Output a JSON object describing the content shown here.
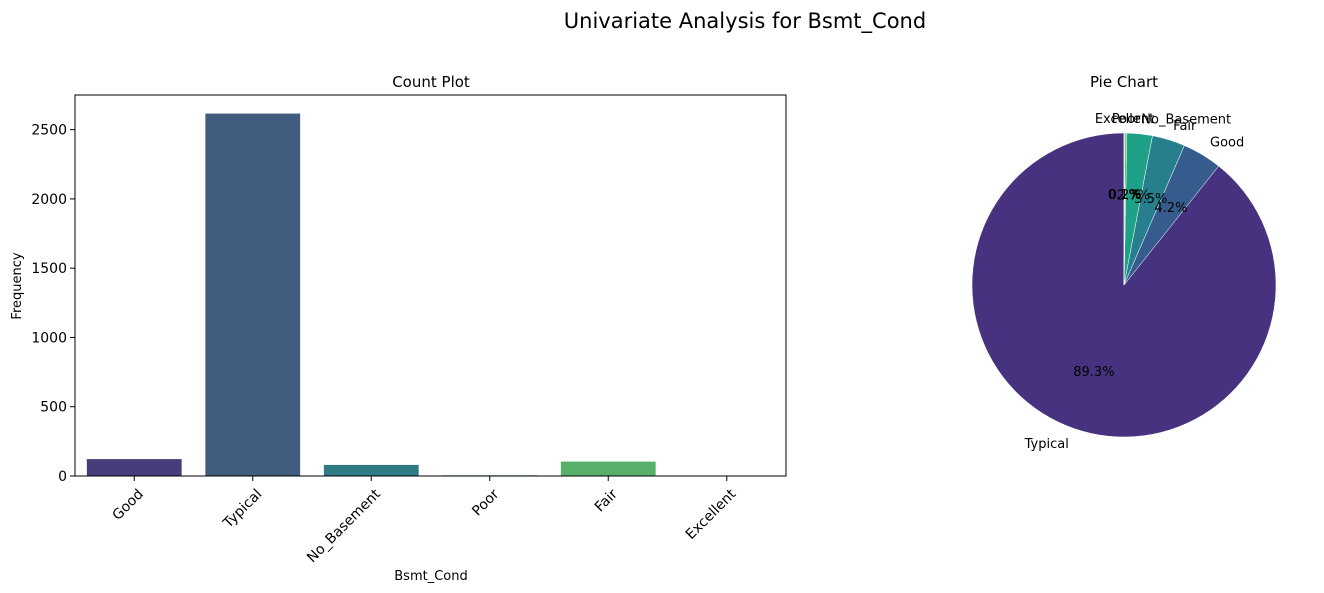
{
  "figure": {
    "suptitle": "Univariate Analysis for Bsmt_Cond"
  },
  "chart_data": [
    {
      "type": "bar",
      "title": "Count Plot",
      "xlabel": "Bsmt_Cond",
      "ylabel": "Frequency",
      "categories": [
        "Good",
        "Typical",
        "No_Basement",
        "Poor",
        "Fair",
        "Excellent"
      ],
      "values": [
        122,
        2616,
        80,
        5,
        104,
        3
      ],
      "colors": [
        "#483d7a",
        "#405d80",
        "#2f7a84",
        "#2ba17f",
        "#57b06a",
        "#c7c14a"
      ],
      "ylim": [
        0,
        2750
      ],
      "yticks": [
        0,
        500,
        1000,
        1500,
        2000,
        2500
      ],
      "grid": false
    },
    {
      "type": "pie",
      "title": "Pie Chart",
      "labels": [
        "Typical",
        "Good",
        "Fair",
        "No_Basement",
        "Poor",
        "Excellent"
      ],
      "values": [
        89.3,
        4.2,
        3.5,
        2.7,
        0.2,
        0.1
      ],
      "pct_labels": [
        "89.3%",
        "4.2%",
        "3.5%",
        "2.7%",
        "0.2%",
        "0.1%"
      ],
      "colors": [
        "#46327e",
        "#365c8d",
        "#277f8e",
        "#1fa187",
        "#4ac16d",
        "#a0da39"
      ],
      "startangle": 90
    }
  ]
}
